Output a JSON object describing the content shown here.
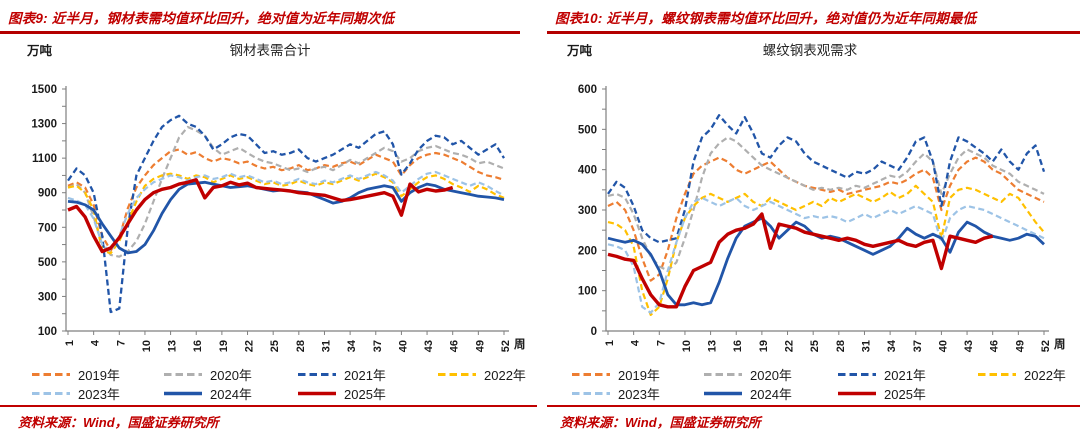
{
  "panels": [
    {
      "header": "图表9: 近半月，钢材表需均值环比回升，绝对值为近年同期次低",
      "unit": "万吨",
      "title": "钢材表需合计",
      "source": "资料来源：Wind，国盛证券研究所"
    },
    {
      "header": "图表10: 近半月，螺纹钢表需均值环比回升，绝对值仍为近年同期最低",
      "unit": "万吨",
      "title": "螺纹钢表观需求",
      "source": "资料来源：Wind，国盛证券研究所"
    }
  ],
  "chart_data": [
    {
      "type": "line",
      "title": "钢材表需合计",
      "ylabel": "万吨",
      "x_label": "周",
      "x_range": [
        1,
        52
      ],
      "x_ticks": [
        1,
        4,
        7,
        10,
        13,
        16,
        19,
        22,
        25,
        28,
        31,
        34,
        37,
        40,
        43,
        46,
        49,
        52
      ],
      "ylim": [
        100,
        1500
      ],
      "y_label_step": 200,
      "y_minor_step": 100,
      "grid": false,
      "legend_position": "bottom",
      "series": [
        {
          "name": "2019年",
          "color": "#ED7D31",
          "dashed": true,
          "width": 2.2,
          "values": [
            940,
            960,
            930,
            830,
            650,
            565,
            640,
            810,
            930,
            1000,
            1060,
            1100,
            1140,
            1150,
            1120,
            1135,
            1100,
            1080,
            1100,
            1090,
            1070,
            1080,
            1055,
            1040,
            1050,
            1030,
            1040,
            1060,
            1030,
            1040,
            1060,
            1050,
            1070,
            1080,
            1060,
            1090,
            1120,
            1100,
            1080,
            1000,
            1060,
            1100,
            1120,
            1130,
            1120,
            1100,
            1080,
            1050,
            1020,
            1000,
            990,
            975
          ]
        },
        {
          "name": "2020年",
          "color": "#AFAFAF",
          "dashed": true,
          "width": 2.2,
          "values": [
            930,
            950,
            900,
            760,
            600,
            540,
            530,
            560,
            620,
            720,
            850,
            980,
            1100,
            1220,
            1280,
            1260,
            1230,
            1160,
            1120,
            1140,
            1160,
            1130,
            1100,
            1080,
            1070,
            1050,
            1030,
            1040,
            1020,
            1040,
            1050,
            1030,
            1060,
            1090,
            1070,
            1100,
            1130,
            1160,
            1140,
            1080,
            1100,
            1140,
            1160,
            1170,
            1150,
            1130,
            1120,
            1100,
            1070,
            1080,
            1060,
            1040
          ]
        },
        {
          "name": "2021年",
          "color": "#2155A8",
          "dashed": true,
          "width": 2.3,
          "values": [
            970,
            1040,
            1000,
            900,
            650,
            210,
            230,
            700,
            1000,
            1100,
            1200,
            1280,
            1320,
            1345,
            1300,
            1280,
            1230,
            1150,
            1180,
            1220,
            1240,
            1230,
            1180,
            1130,
            1140,
            1120,
            1130,
            1150,
            1100,
            1080,
            1100,
            1120,
            1150,
            1180,
            1160,
            1200,
            1240,
            1255,
            1180,
            1005,
            1070,
            1150,
            1200,
            1230,
            1220,
            1180,
            1200,
            1160,
            1120,
            1150,
            1180,
            1100
          ]
        },
        {
          "name": "2022年",
          "color": "#FFC000",
          "dashed": true,
          "width": 2.2,
          "values": [
            930,
            940,
            900,
            800,
            565,
            550,
            620,
            730,
            850,
            940,
            980,
            1000,
            1010,
            1000,
            980,
            1000,
            990,
            960,
            980,
            1000,
            980,
            990,
            970,
            950,
            960,
            940,
            950,
            970,
            950,
            940,
            960,
            950,
            970,
            990,
            970,
            990,
            1010,
            990,
            960,
            880,
            920,
            960,
            990,
            1000,
            980,
            950,
            930,
            905,
            940,
            920,
            890,
            870
          ]
        },
        {
          "name": "2023年",
          "color": "#9DC3E6",
          "dashed": true,
          "width": 2.2,
          "values": [
            870,
            855,
            830,
            750,
            600,
            560,
            650,
            780,
            870,
            920,
            960,
            980,
            1000,
            990,
            970,
            990,
            1000,
            980,
            990,
            1010,
            990,
            1000,
            980,
            960,
            970,
            950,
            960,
            980,
            960,
            950,
            970,
            960,
            980,
            1000,
            980,
            1000,
            1020,
            1000,
            970,
            900,
            940,
            980,
            1010,
            1020,
            1000,
            980,
            960,
            940,
            960,
            940,
            910,
            885
          ]
        },
        {
          "name": "2024年",
          "color": "#2155A8",
          "dashed": false,
          "width": 2.8,
          "values": [
            850,
            845,
            830,
            800,
            720,
            650,
            580,
            552,
            560,
            600,
            680,
            780,
            860,
            920,
            950,
            955,
            960,
            950,
            940,
            930,
            935,
            940,
            930,
            920,
            910,
            915,
            910,
            905,
            900,
            880,
            860,
            840,
            850,
            870,
            900,
            920,
            930,
            940,
            930,
            850,
            900,
            930,
            950,
            940,
            920,
            910,
            900,
            890,
            880,
            875,
            870,
            860
          ]
        },
        {
          "name": "2025年",
          "color": "#C00000",
          "dashed": false,
          "width": 3.4,
          "values": [
            800,
            820,
            760,
            650,
            560,
            580,
            640,
            720,
            800,
            860,
            900,
            920,
            930,
            950,
            960,
            975,
            870,
            930,
            940,
            960,
            945,
            955,
            930,
            925,
            920,
            915,
            910,
            900,
            895,
            890,
            885,
            870,
            855,
            860,
            870,
            880,
            890,
            900,
            880,
            770,
            950,
            905,
            920,
            910,
            915,
            930
          ]
        }
      ]
    },
    {
      "type": "line",
      "title": "螺纹钢表观需求",
      "ylabel": "万吨",
      "x_label": "周",
      "x_range": [
        1,
        52
      ],
      "x_ticks": [
        1,
        4,
        7,
        10,
        13,
        16,
        19,
        22,
        25,
        28,
        31,
        34,
        37,
        40,
        43,
        46,
        49,
        52
      ],
      "ylim": [
        0,
        600
      ],
      "y_label_step": 100,
      "y_minor_step": 50,
      "grid": false,
      "legend_position": "bottom",
      "series": [
        {
          "name": "2019年",
          "color": "#ED7D31",
          "dashed": true,
          "width": 2.2,
          "values": [
            310,
            320,
            300,
            250,
            180,
            125,
            140,
            200,
            280,
            340,
            390,
            410,
            420,
            430,
            420,
            400,
            390,
            400,
            410,
            420,
            400,
            380,
            370,
            360,
            355,
            350,
            345,
            350,
            340,
            345,
            350,
            355,
            360,
            370,
            365,
            375,
            390,
            400,
            380,
            300,
            360,
            400,
            420,
            430,
            420,
            400,
            390,
            370,
            350,
            340,
            330,
            320
          ]
        },
        {
          "name": "2020年",
          "color": "#AFAFAF",
          "dashed": true,
          "width": 2.2,
          "values": [
            335,
            340,
            330,
            290,
            230,
            185,
            160,
            150,
            170,
            230,
            300,
            380,
            440,
            465,
            480,
            470,
            450,
            430,
            410,
            400,
            390,
            380,
            370,
            360,
            350,
            355,
            350,
            355,
            350,
            360,
            355,
            365,
            375,
            385,
            380,
            395,
            420,
            440,
            420,
            340,
            390,
            430,
            450,
            440,
            430,
            410,
            400,
            390,
            370,
            360,
            350,
            340
          ]
        },
        {
          "name": "2021年",
          "color": "#2155A8",
          "dashed": true,
          "width": 2.3,
          "values": [
            340,
            370,
            355,
            310,
            250,
            230,
            220,
            225,
            230,
            300,
            420,
            480,
            500,
            535,
            510,
            490,
            530,
            490,
            440,
            430,
            460,
            480,
            470,
            440,
            420,
            410,
            400,
            390,
            380,
            395,
            390,
            400,
            420,
            410,
            400,
            430,
            470,
            480,
            420,
            310,
            420,
            480,
            470,
            455,
            440,
            420,
            450,
            420,
            400,
            440,
            460,
            395
          ]
        },
        {
          "name": "2022年",
          "color": "#FFC000",
          "dashed": true,
          "width": 2.2,
          "values": [
            270,
            265,
            250,
            210,
            100,
            40,
            60,
            130,
            220,
            280,
            310,
            330,
            340,
            330,
            320,
            330,
            340,
            320,
            310,
            330,
            320,
            310,
            300,
            310,
            320,
            310,
            330,
            320,
            330,
            340,
            330,
            320,
            330,
            345,
            330,
            340,
            360,
            340,
            320,
            230,
            330,
            350,
            355,
            350,
            340,
            330,
            320,
            340,
            330,
            300,
            270,
            245
          ]
        },
        {
          "name": "2023年",
          "color": "#9DC3E6",
          "dashed": true,
          "width": 2.2,
          "values": [
            215,
            210,
            200,
            160,
            60,
            45,
            70,
            150,
            220,
            280,
            320,
            330,
            320,
            310,
            320,
            330,
            310,
            300,
            310,
            320,
            310,
            300,
            290,
            280,
            285,
            280,
            285,
            280,
            270,
            280,
            290,
            280,
            290,
            300,
            290,
            300,
            310,
            300,
            290,
            220,
            280,
            300,
            310,
            305,
            300,
            290,
            280,
            270,
            260,
            250,
            240,
            230
          ]
        },
        {
          "name": "2024年",
          "color": "#2155A8",
          "dashed": false,
          "width": 2.8,
          "values": [
            230,
            225,
            220,
            225,
            215,
            190,
            150,
            90,
            65,
            65,
            70,
            65,
            70,
            120,
            180,
            230,
            260,
            270,
            280,
            260,
            230,
            250,
            270,
            260,
            240,
            230,
            235,
            230,
            220,
            210,
            200,
            190,
            200,
            210,
            230,
            255,
            240,
            230,
            240,
            230,
            195,
            245,
            270,
            260,
            245,
            235,
            230,
            225,
            230,
            240,
            235,
            215
          ]
        },
        {
          "name": "2025年",
          "color": "#C00000",
          "dashed": false,
          "width": 3.4,
          "values": [
            190,
            185,
            178,
            175,
            130,
            90,
            65,
            60,
            60,
            110,
            150,
            160,
            170,
            220,
            240,
            250,
            255,
            265,
            290,
            205,
            265,
            260,
            255,
            245,
            240,
            235,
            230,
            225,
            230,
            225,
            215,
            210,
            215,
            220,
            225,
            215,
            210,
            220,
            225,
            155,
            235,
            230,
            225,
            220,
            230,
            235
          ]
        }
      ]
    }
  ]
}
